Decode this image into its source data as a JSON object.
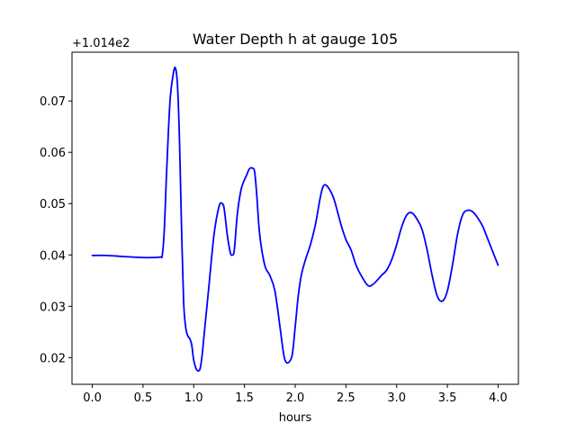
{
  "chart_data": {
    "type": "line",
    "title": "Water Depth h at gauge 105",
    "xlabel": "hours",
    "ylabel": "",
    "offset_text": "+1.014e2",
    "y_offset": 101.4,
    "xlim": [
      -0.2,
      4.2
    ],
    "ylim": [
      0.0148,
      0.0795
    ],
    "x_ticks": [
      0.0,
      0.5,
      1.0,
      1.5,
      2.0,
      2.5,
      3.0,
      3.5,
      4.0
    ],
    "x_tick_labels": [
      "0.0",
      "0.5",
      "1.0",
      "1.5",
      "2.0",
      "2.5",
      "3.0",
      "3.5",
      "4.0"
    ],
    "y_ticks": [
      0.02,
      0.03,
      0.04,
      0.05,
      0.06,
      0.07
    ],
    "y_tick_labels": [
      "0.02",
      "0.03",
      "0.04",
      "0.05",
      "0.06",
      "0.07"
    ],
    "grid": false,
    "series": [
      {
        "color": "#0000ff",
        "x": [
          0.0,
          0.15,
          0.3,
          0.5,
          0.6,
          0.67,
          0.69,
          0.71,
          0.73,
          0.75,
          0.77,
          0.8,
          0.82,
          0.84,
          0.86,
          0.88,
          0.9,
          0.92,
          0.94,
          0.96,
          0.98,
          1.0,
          1.03,
          1.06,
          1.08,
          1.1,
          1.15,
          1.2,
          1.25,
          1.28,
          1.3,
          1.33,
          1.36,
          1.38,
          1.4,
          1.43,
          1.47,
          1.52,
          1.55,
          1.58,
          1.6,
          1.62,
          1.65,
          1.7,
          1.75,
          1.8,
          1.85,
          1.88,
          1.9,
          1.93,
          1.97,
          2.0,
          2.03,
          2.06,
          2.1,
          2.15,
          2.2,
          2.25,
          2.28,
          2.32,
          2.38,
          2.45,
          2.5,
          2.55,
          2.6,
          2.65,
          2.72,
          2.78,
          2.85,
          2.9,
          2.95,
          3.0,
          3.05,
          3.1,
          3.15,
          3.2,
          3.25,
          3.3,
          3.35,
          3.4,
          3.45,
          3.5,
          3.55,
          3.6,
          3.65,
          3.7,
          3.75,
          3.8,
          3.85,
          3.9,
          3.95,
          4.0
        ],
        "values": [
          0.0399,
          0.0399,
          0.0397,
          0.0395,
          0.0395,
          0.0396,
          0.04,
          0.045,
          0.055,
          0.064,
          0.071,
          0.0755,
          0.0764,
          0.073,
          0.062,
          0.045,
          0.031,
          0.026,
          0.0243,
          0.0237,
          0.0225,
          0.0195,
          0.0176,
          0.0177,
          0.02,
          0.024,
          0.034,
          0.044,
          0.0495,
          0.05,
          0.049,
          0.044,
          0.0405,
          0.04,
          0.041,
          0.048,
          0.053,
          0.0555,
          0.0568,
          0.0569,
          0.0562,
          0.052,
          0.044,
          0.038,
          0.036,
          0.033,
          0.026,
          0.0215,
          0.0195,
          0.019,
          0.0205,
          0.026,
          0.032,
          0.036,
          0.039,
          0.042,
          0.046,
          0.0515,
          0.0535,
          0.0533,
          0.051,
          0.046,
          0.043,
          0.041,
          0.038,
          0.036,
          0.034,
          0.0345,
          0.036,
          0.037,
          0.039,
          0.042,
          0.0455,
          0.0478,
          0.0482,
          0.047,
          0.045,
          0.041,
          0.036,
          0.032,
          0.031,
          0.033,
          0.038,
          0.044,
          0.0478,
          0.0487,
          0.0484,
          0.0472,
          0.0455,
          0.043,
          0.0405,
          0.038
        ]
      }
    ]
  }
}
